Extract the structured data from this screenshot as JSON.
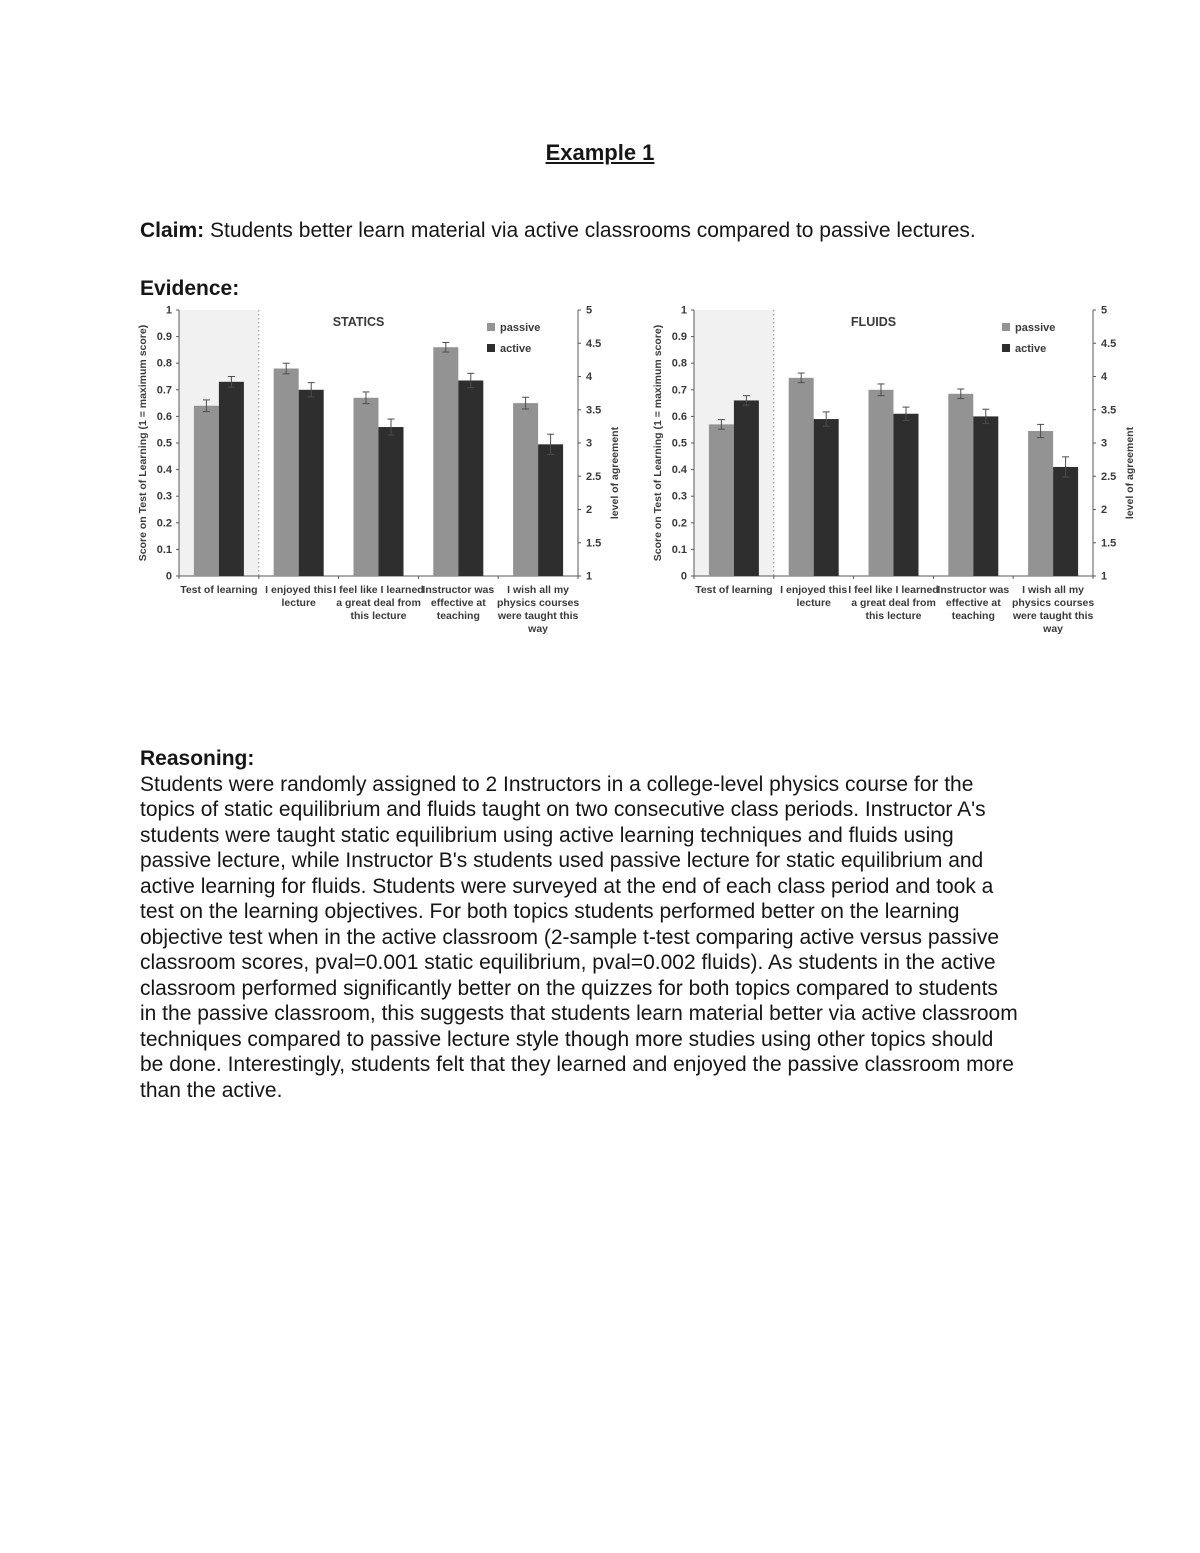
{
  "page": {
    "title": "Example 1",
    "claim_label": "Claim:",
    "claim_text": "Students better learn material via active classrooms compared to passive lectures.",
    "evidence_label": "Evidence:",
    "reasoning_label": "Reasoning:",
    "reasoning_text": "Students were randomly assigned to 2 Instructors in a college-level physics course for the topics of static equilibrium and fluids taught on two consecutive class periods. Instructor A's students were taught static equilibrium using active learning techniques and fluids using passive lecture, while Instructor B's students used passive lecture for static equilibrium and active learning for fluids. Students were surveyed at the end of each class period and took a test on the learning objectives. For both topics students performed better on the learning objective test when in the active classroom (2-sample t-test comparing active versus passive classroom scores, pval=0.001 static equilibrium, pval=0.002 fluids). As students in the active classroom performed significantly better on the quizzes for both topics compared to students in the passive classroom, this suggests that students learn material better via active classroom techniques compared to passive lecture style though more studies using other topics should be done. Interestingly, students felt that they learned and enjoyed the passive classroom more than the active."
  },
  "chart_data": [
    {
      "type": "bar",
      "name": "statics",
      "title": "STATICS",
      "categories": [
        "Test of learning",
        "I enjoyed this lecture",
        "I feel like I learned a great deal from this lecture",
        "Instructor was effective at teaching",
        "I wish all my physics courses were taught this way"
      ],
      "category_lines": [
        [
          "Test of learning"
        ],
        [
          "I enjoyed this",
          "lecture"
        ],
        [
          "I feel like I learned",
          "a great deal from",
          "this lecture"
        ],
        [
          "Instructor was",
          "effective at",
          "teaching"
        ],
        [
          "I wish all my",
          "physics courses",
          "were taught this",
          "way"
        ]
      ],
      "series": [
        {
          "name": "passive",
          "color": "#939393",
          "values": [
            0.64,
            0.78,
            0.67,
            0.86,
            0.65
          ],
          "errors": [
            0.022,
            0.02,
            0.022,
            0.018,
            0.022
          ]
        },
        {
          "name": "active",
          "color": "#2e2e2e",
          "values": [
            0.73,
            0.7,
            0.56,
            0.735,
            0.495
          ],
          "errors": [
            0.02,
            0.027,
            0.03,
            0.027,
            0.038
          ]
        }
      ],
      "left_axis": {
        "label": "Score on Test of Learning  (1 = maximum score)",
        "min": 0,
        "max": 1,
        "step": 0.1
      },
      "right_axis": {
        "label": "level of agreement",
        "min": 1,
        "max": 5,
        "step": 0.5
      },
      "first_category_highlighted": true,
      "highlight_color": "#f1f1f1",
      "legend_position": "top-right-inside",
      "grid": false
    },
    {
      "type": "bar",
      "name": "fluids",
      "title": "FLUIDS",
      "categories": [
        "Test of learning",
        "I enjoyed this lecture",
        "I feel like I learned a great deal from this lecture",
        "Instructor was effective at teaching",
        "I wish all my physics courses were taught this way"
      ],
      "category_lines": [
        [
          "Test of learning"
        ],
        [
          "I enjoyed this",
          "lecture"
        ],
        [
          "I feel like I learned",
          "a great deal from",
          "this lecture"
        ],
        [
          "Instructor was",
          "effective at",
          "teaching"
        ],
        [
          "I wish all my",
          "physics courses",
          "were taught this",
          "way"
        ]
      ],
      "series": [
        {
          "name": "passive",
          "color": "#939393",
          "values": [
            0.57,
            0.745,
            0.7,
            0.685,
            0.545
          ],
          "errors": [
            0.018,
            0.018,
            0.022,
            0.018,
            0.025
          ]
        },
        {
          "name": "active",
          "color": "#2e2e2e",
          "values": [
            0.66,
            0.59,
            0.61,
            0.6,
            0.41
          ],
          "errors": [
            0.018,
            0.027,
            0.025,
            0.027,
            0.038
          ]
        }
      ],
      "left_axis": {
        "label": "Score on Test of Learning  (1 = maximum score)",
        "min": 0,
        "max": 1,
        "step": 0.1
      },
      "right_axis": {
        "label": "level of agreement",
        "min": 1,
        "max": 5,
        "step": 0.5
      },
      "first_category_highlighted": true,
      "highlight_color": "#f1f1f1",
      "legend_position": "top-right-inside",
      "grid": false
    }
  ]
}
